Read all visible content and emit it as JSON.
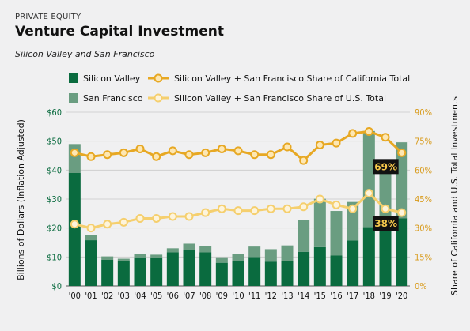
{
  "header": {
    "eyebrow": "PRIVATE EQUITY",
    "title": "Venture Capital Investment",
    "subtitle": "Silicon Valley and San Francisco"
  },
  "colors": {
    "silicon_valley": "#0a6b3f",
    "san_francisco": "#6a9d81",
    "ca_share_line": "#e7a823",
    "ca_share_marker_fill": "#fde7b3",
    "us_share_line": "#f5cf6e",
    "us_share_marker_fill": "#fdf4dc",
    "left_axis_text": "#0a6b3f",
    "right_axis_text": "#d89a1a",
    "callout_bg": "#111111",
    "callout_text": "#f6c84b"
  },
  "chart_data": {
    "type": "bar",
    "stacked": true,
    "categories": [
      "'00",
      "'01",
      "'02",
      "'03",
      "'04",
      "'05",
      "'06",
      "'07",
      "'08",
      "'09",
      "'10",
      "'11",
      "'12",
      "'13",
      "'14",
      "'15",
      "'16",
      "'17",
      "'18",
      "'19",
      "'20"
    ],
    "series": [
      {
        "name": "Silicon Valley",
        "axis": "left",
        "kind": "bar",
        "values": [
          39,
          15.8,
          9,
          8.6,
          9.9,
          9.7,
          11.6,
          12.5,
          11.6,
          8,
          8.7,
          10,
          8.4,
          8.7,
          11.8,
          13.4,
          10.5,
          15.7,
          20.3,
          21.3,
          23.4
        ]
      },
      {
        "name": "San Francisco",
        "axis": "left",
        "kind": "bar",
        "values": [
          10,
          1.7,
          1.2,
          0.8,
          1.1,
          1.1,
          1.4,
          2.1,
          2.3,
          1.9,
          2.4,
          3.6,
          4.3,
          5.3,
          10.9,
          16.7,
          15.4,
          13.3,
          33.2,
          22,
          26.2
        ]
      },
      {
        "name": "Silicon Valley + San Francisco Share of California Total",
        "axis": "right",
        "kind": "line",
        "values": [
          69,
          67,
          68,
          69,
          71,
          67,
          70,
          68,
          69,
          71,
          70,
          68,
          68,
          72,
          65,
          73,
          74,
          79,
          80,
          77,
          69
        ]
      },
      {
        "name": "Silicon Valley + San Francisco Share of U.S. Total",
        "axis": "right",
        "kind": "line",
        "values": [
          32,
          30,
          32,
          33,
          35,
          35,
          36,
          36,
          38,
          40,
          39,
          39,
          40,
          40,
          41,
          45,
          42,
          40,
          48,
          40,
          38
        ]
      }
    ],
    "legend": {
      "bars": [
        "Silicon Valley",
        "San Francisco"
      ],
      "lines": [
        "Silicon Valley + San Francisco Share of California Total",
        "Silicon Valley + San Francisco Share of U.S. Total"
      ],
      "placement": "top"
    },
    "left_axis": {
      "label": "Billions of Dollars (Inflation Adjusted)",
      "ylim": [
        0,
        60
      ],
      "ticks": [
        "$0",
        "$10",
        "$20",
        "$30",
        "$40",
        "$50",
        "$60"
      ]
    },
    "right_axis": {
      "label": "Share of California and U.S. Total Investments",
      "ylim": [
        0,
        90
      ],
      "ticks": [
        "0%",
        "15%",
        "30%",
        "45%",
        "60%",
        "75%",
        "90%"
      ]
    },
    "annotations": [
      {
        "text": "69%",
        "series": 2,
        "category": "'20"
      },
      {
        "text": "38%",
        "series": 3,
        "category": "'20"
      }
    ],
    "grid": true
  }
}
